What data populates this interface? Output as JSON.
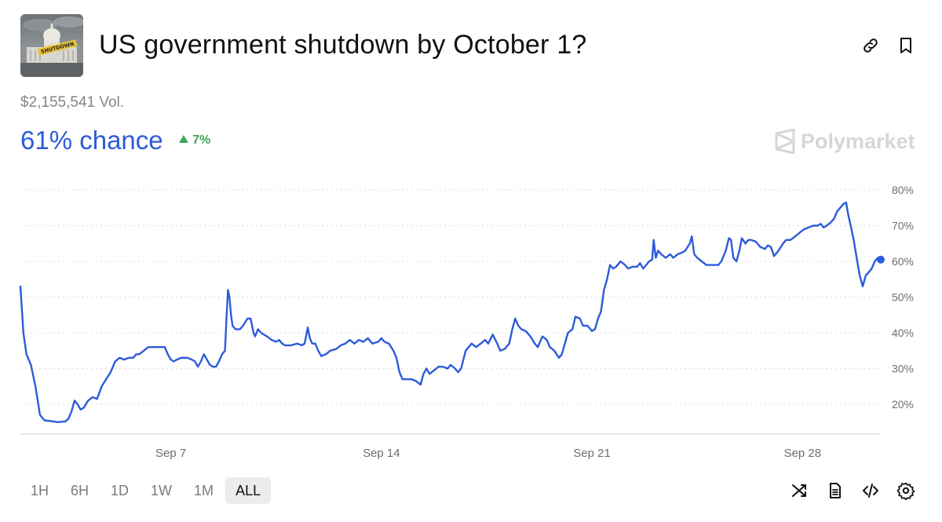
{
  "header": {
    "title": "US government shutdown by October 1?",
    "thumbnail_label": "SHUTDOWN"
  },
  "market": {
    "volume": "$2,155,541 Vol.",
    "chance": "61% chance",
    "change": "7%",
    "brand": "Polymarket"
  },
  "ranges": [
    {
      "label": "1H",
      "active": false
    },
    {
      "label": "6H",
      "active": false
    },
    {
      "label": "1D",
      "active": false
    },
    {
      "label": "1W",
      "active": false
    },
    {
      "label": "1M",
      "active": false
    },
    {
      "label": "ALL",
      "active": true
    }
  ],
  "colors": {
    "accent": "#2d5bd9",
    "positive": "#3fa55a",
    "muted": "#858585"
  },
  "icons": [
    "link-icon",
    "bookmark-icon",
    "shuffle-icon",
    "document-icon",
    "code-icon",
    "settings-icon",
    "polymarket-logo-icon"
  ],
  "chart_data": {
    "type": "line",
    "x_unit": "days (Sep 2 – Sep 29)",
    "ylim": [
      12,
      82
    ],
    "yticks": [
      20,
      30,
      40,
      50,
      60,
      70,
      80
    ],
    "ytick_labels": [
      "20%",
      "30%",
      "40%",
      "50%",
      "60%",
      "70%",
      "80%"
    ],
    "xticks": [
      {
        "label": "Sep 7",
        "day": 7
      },
      {
        "label": "Sep 14",
        "day": 14
      },
      {
        "label": "Sep 21",
        "day": 21
      },
      {
        "label": "Sep 28",
        "day": 28
      }
    ],
    "grid": true,
    "legend": "none",
    "series": [
      {
        "points": [
          [
            2.0,
            53
          ],
          [
            2.1,
            40
          ],
          [
            2.2,
            34
          ],
          [
            2.35,
            31
          ],
          [
            2.5,
            25
          ],
          [
            2.65,
            17
          ],
          [
            2.8,
            15.5
          ],
          [
            3.0,
            15.3
          ],
          [
            3.25,
            15
          ],
          [
            3.5,
            15.2
          ],
          [
            3.6,
            16
          ],
          [
            3.7,
            18
          ],
          [
            3.8,
            21
          ],
          [
            3.9,
            20
          ],
          [
            4.0,
            18.5
          ],
          [
            4.1,
            19
          ],
          [
            4.25,
            21
          ],
          [
            4.4,
            22
          ],
          [
            4.55,
            21.5
          ],
          [
            4.7,
            25
          ],
          [
            4.85,
            27
          ],
          [
            5.0,
            29
          ],
          [
            5.15,
            32
          ],
          [
            5.3,
            33
          ],
          [
            5.45,
            32.5
          ],
          [
            5.6,
            33
          ],
          [
            5.75,
            33
          ],
          [
            5.85,
            34
          ],
          [
            5.95,
            34
          ],
          [
            6.1,
            35
          ],
          [
            6.25,
            36
          ],
          [
            6.4,
            36
          ],
          [
            6.55,
            36
          ],
          [
            6.7,
            36
          ],
          [
            6.8,
            36
          ],
          [
            6.9,
            34
          ],
          [
            7.0,
            32.5
          ],
          [
            7.1,
            32
          ],
          [
            7.2,
            32.5
          ],
          [
            7.35,
            33
          ],
          [
            7.55,
            33
          ],
          [
            7.7,
            32.5
          ],
          [
            7.8,
            32
          ],
          [
            7.9,
            30.5
          ],
          [
            8.0,
            32
          ],
          [
            8.1,
            34
          ],
          [
            8.2,
            32.5
          ],
          [
            8.3,
            31
          ],
          [
            8.4,
            30.5
          ],
          [
            8.5,
            30.5
          ],
          [
            8.6,
            32
          ],
          [
            8.7,
            34
          ],
          [
            8.8,
            35
          ],
          [
            8.85,
            44
          ],
          [
            8.9,
            52
          ],
          [
            8.95,
            50
          ],
          [
            9.0,
            45
          ],
          [
            9.05,
            42
          ],
          [
            9.15,
            41
          ],
          [
            9.3,
            41
          ],
          [
            9.4,
            42
          ],
          [
            9.55,
            44
          ],
          [
            9.65,
            44
          ],
          [
            9.75,
            40
          ],
          [
            9.8,
            39
          ],
          [
            9.9,
            41
          ],
          [
            10.0,
            40
          ],
          [
            10.2,
            39
          ],
          [
            10.35,
            38
          ],
          [
            10.5,
            37.5
          ],
          [
            10.6,
            38
          ],
          [
            10.7,
            37
          ],
          [
            10.8,
            36.5
          ],
          [
            11.0,
            36.5
          ],
          [
            11.2,
            37
          ],
          [
            11.35,
            36.5
          ],
          [
            11.45,
            37
          ],
          [
            11.55,
            41.5
          ],
          [
            11.62,
            38.5
          ],
          [
            11.7,
            37
          ],
          [
            11.8,
            37
          ],
          [
            11.9,
            35
          ],
          [
            12.0,
            33.5
          ],
          [
            12.15,
            34
          ],
          [
            12.3,
            35
          ],
          [
            12.5,
            35.5
          ],
          [
            12.65,
            36.5
          ],
          [
            12.8,
            37
          ],
          [
            12.95,
            38
          ],
          [
            13.1,
            37
          ],
          [
            13.25,
            38
          ],
          [
            13.4,
            37.5
          ],
          [
            13.55,
            38.5
          ],
          [
            13.7,
            37
          ],
          [
            13.9,
            37.5
          ],
          [
            14.0,
            38.5
          ],
          [
            14.1,
            37.5
          ],
          [
            14.25,
            37
          ],
          [
            14.4,
            35
          ],
          [
            14.5,
            33
          ],
          [
            14.6,
            29
          ],
          [
            14.7,
            27
          ],
          [
            14.85,
            27
          ],
          [
            15.0,
            27
          ],
          [
            15.15,
            26.5
          ],
          [
            15.3,
            25.5
          ],
          [
            15.4,
            28.5
          ],
          [
            15.5,
            30
          ],
          [
            15.6,
            28.5
          ],
          [
            15.75,
            29.5
          ],
          [
            15.9,
            30.5
          ],
          [
            16.05,
            30.5
          ],
          [
            16.2,
            30
          ],
          [
            16.3,
            31
          ],
          [
            16.45,
            30
          ],
          [
            16.55,
            29
          ],
          [
            16.65,
            30
          ],
          [
            16.8,
            35
          ],
          [
            16.9,
            36
          ],
          [
            17.0,
            37
          ],
          [
            17.15,
            36
          ],
          [
            17.3,
            37
          ],
          [
            17.45,
            38
          ],
          [
            17.55,
            37
          ],
          [
            17.7,
            39.5
          ],
          [
            17.85,
            37
          ],
          [
            17.95,
            35
          ],
          [
            18.1,
            35.5
          ],
          [
            18.25,
            37
          ],
          [
            18.35,
            41
          ],
          [
            18.45,
            44
          ],
          [
            18.55,
            42
          ],
          [
            18.65,
            41
          ],
          [
            18.8,
            40.5
          ],
          [
            18.95,
            39
          ],
          [
            19.1,
            37
          ],
          [
            19.2,
            36
          ],
          [
            19.35,
            39
          ],
          [
            19.5,
            38
          ],
          [
            19.6,
            36
          ],
          [
            19.75,
            35
          ],
          [
            19.9,
            33
          ],
          [
            20.0,
            34
          ],
          [
            20.1,
            37
          ],
          [
            20.2,
            40
          ],
          [
            20.35,
            41
          ],
          [
            20.45,
            44.5
          ],
          [
            20.6,
            44
          ],
          [
            20.7,
            42
          ],
          [
            20.85,
            42
          ],
          [
            21.0,
            40.5
          ],
          [
            21.1,
            41
          ],
          [
            21.2,
            44
          ],
          [
            21.3,
            46
          ],
          [
            21.4,
            52
          ],
          [
            21.5,
            55
          ],
          [
            21.6,
            59
          ],
          [
            21.7,
            58
          ],
          [
            21.8,
            58.5
          ],
          [
            21.95,
            60
          ],
          [
            22.1,
            59
          ],
          [
            22.2,
            58
          ],
          [
            22.35,
            58.5
          ],
          [
            22.5,
            58.5
          ],
          [
            22.6,
            59.5
          ],
          [
            22.7,
            58
          ],
          [
            22.8,
            59
          ],
          [
            22.9,
            60
          ],
          [
            23.0,
            60.5
          ],
          [
            23.05,
            66
          ],
          [
            23.12,
            61
          ],
          [
            23.2,
            63
          ],
          [
            23.3,
            62
          ],
          [
            23.45,
            61
          ],
          [
            23.6,
            62
          ],
          [
            23.7,
            61
          ],
          [
            23.85,
            62
          ],
          [
            24.0,
            62.5
          ],
          [
            24.1,
            63
          ],
          [
            24.25,
            65
          ],
          [
            24.32,
            67
          ],
          [
            24.4,
            62
          ],
          [
            24.5,
            61
          ],
          [
            24.65,
            60
          ],
          [
            24.8,
            59
          ],
          [
            25.0,
            59
          ],
          [
            25.2,
            59
          ],
          [
            25.3,
            60
          ],
          [
            25.45,
            63
          ],
          [
            25.55,
            66.5
          ],
          [
            25.62,
            66
          ],
          [
            25.7,
            61
          ],
          [
            25.8,
            60
          ],
          [
            25.9,
            63
          ],
          [
            25.98,
            66.5
          ],
          [
            26.1,
            65
          ],
          [
            26.2,
            66
          ],
          [
            26.3,
            66
          ],
          [
            26.45,
            65.5
          ],
          [
            26.6,
            64
          ],
          [
            26.75,
            63.5
          ],
          [
            26.85,
            64.5
          ],
          [
            26.95,
            64
          ],
          [
            27.05,
            61.5
          ],
          [
            27.2,
            63
          ],
          [
            27.35,
            65
          ],
          [
            27.45,
            66
          ],
          [
            27.6,
            66
          ],
          [
            27.75,
            67
          ],
          [
            27.9,
            68
          ],
          [
            28.05,
            69
          ],
          [
            28.2,
            69.5
          ],
          [
            28.35,
            70
          ],
          [
            28.5,
            70
          ],
          [
            28.6,
            70.5
          ],
          [
            28.7,
            69.5
          ],
          [
            28.8,
            70
          ],
          [
            28.95,
            71
          ],
          [
            29.05,
            72
          ],
          [
            29.15,
            74
          ],
          [
            29.25,
            75
          ],
          [
            29.35,
            76
          ],
          [
            29.45,
            76.5
          ],
          [
            29.52,
            73
          ],
          [
            29.6,
            70
          ],
          [
            29.7,
            66
          ],
          [
            29.8,
            61
          ],
          [
            29.9,
            56
          ],
          [
            30.0,
            53
          ],
          [
            30.1,
            56
          ],
          [
            30.2,
            57
          ],
          [
            30.3,
            58
          ],
          [
            30.4,
            60
          ],
          [
            30.5,
            61
          ],
          [
            30.6,
            60.5
          ]
        ]
      }
    ],
    "current_value": 60.5
  }
}
